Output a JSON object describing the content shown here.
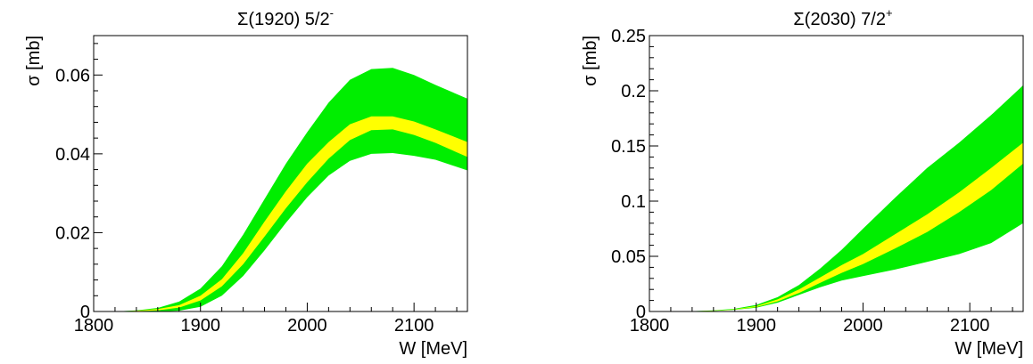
{
  "chart_data": [
    {
      "type": "area",
      "title": "Σ(1920) 5/2",
      "title_superscript": "-",
      "xlabel": "W [MeV]",
      "ylabel": "σ [mb]",
      "xlim": [
        1800,
        2150
      ],
      "ylim": [
        0,
        0.07
      ],
      "xticks": [
        1800,
        1900,
        2000,
        2100
      ],
      "xtick_labels": [
        "1800",
        "1900",
        "2000",
        "2100"
      ],
      "yticks": [
        0,
        0.02,
        0.04,
        0.06
      ],
      "ytick_labels": [
        "0",
        "0.02",
        "0.04",
        "0.06"
      ],
      "grid": false,
      "colors": {
        "outer_band": "#00ee00",
        "inner_band": "#ffff00",
        "frame": "#000000"
      },
      "x": [
        1820,
        1840,
        1860,
        1880,
        1900,
        1920,
        1940,
        1960,
        1980,
        2000,
        2020,
        2040,
        2060,
        2080,
        2100,
        2120,
        2150
      ],
      "series": [
        {
          "role": "outer_band",
          "upper": [
            0.0,
            0.0003,
            0.0009,
            0.0025,
            0.0058,
            0.0115,
            0.0195,
            0.0285,
            0.0375,
            0.0455,
            0.053,
            0.0588,
            0.0615,
            0.0618,
            0.06,
            0.0575,
            0.054
          ],
          "lower": [
            0.0,
            0.0,
            0.0,
            0.0002,
            0.0012,
            0.004,
            0.009,
            0.0155,
            0.0225,
            0.029,
            0.0345,
            0.0382,
            0.04,
            0.0402,
            0.0395,
            0.0385,
            0.0358
          ]
        },
        {
          "role": "inner_band",
          "upper": [
            0.0,
            0.0002,
            0.0006,
            0.0016,
            0.004,
            0.0082,
            0.0148,
            0.0228,
            0.0305,
            0.0375,
            0.043,
            0.0475,
            0.0495,
            0.0495,
            0.0482,
            0.0462,
            0.043
          ],
          "lower": [
            0.0,
            0.0001,
            0.0003,
            0.001,
            0.0028,
            0.0064,
            0.012,
            0.019,
            0.0262,
            0.0328,
            0.0388,
            0.0435,
            0.046,
            0.0462,
            0.0448,
            0.0428,
            0.0392
          ]
        }
      ]
    },
    {
      "type": "area",
      "title": "Σ(2030) 7/2",
      "title_superscript": "+",
      "xlabel": "W [MeV]",
      "ylabel": "σ [mb]",
      "xlim": [
        1800,
        2150
      ],
      "ylim": [
        0,
        0.25
      ],
      "xticks": [
        1800,
        1900,
        2000,
        2100
      ],
      "xtick_labels": [
        "1800",
        "1900",
        "2000",
        "2100"
      ],
      "yticks": [
        0,
        0.05,
        0.1,
        0.15,
        0.2,
        0.25
      ],
      "ytick_labels": [
        "0",
        "0.05",
        "0.1",
        "0.15",
        "0.2",
        "0.25"
      ],
      "grid": false,
      "colors": {
        "outer_band": "#00ee00",
        "inner_band": "#ffff00",
        "frame": "#000000"
      },
      "x": [
        1820,
        1840,
        1860,
        1880,
        1900,
        1920,
        1940,
        1960,
        1980,
        2000,
        2030,
        2060,
        2090,
        2120,
        2150
      ],
      "series": [
        {
          "role": "outer_band",
          "upper": [
            0.0,
            0.0003,
            0.001,
            0.0025,
            0.006,
            0.013,
            0.024,
            0.039,
            0.056,
            0.075,
            0.103,
            0.13,
            0.153,
            0.178,
            0.205
          ],
          "lower": [
            0.0,
            0.0001,
            0.0005,
            0.0015,
            0.0035,
            0.008,
            0.015,
            0.022,
            0.028,
            0.032,
            0.038,
            0.045,
            0.052,
            0.062,
            0.08
          ]
        },
        {
          "role": "inner_band",
          "upper": [
            0.0,
            0.0002,
            0.0008,
            0.002,
            0.0048,
            0.011,
            0.02,
            0.031,
            0.042,
            0.052,
            0.07,
            0.088,
            0.108,
            0.13,
            0.153
          ],
          "lower": [
            0.0,
            0.0001,
            0.0006,
            0.0017,
            0.004,
            0.0092,
            0.0168,
            0.026,
            0.035,
            0.043,
            0.057,
            0.072,
            0.09,
            0.11,
            0.134
          ]
        }
      ]
    }
  ]
}
